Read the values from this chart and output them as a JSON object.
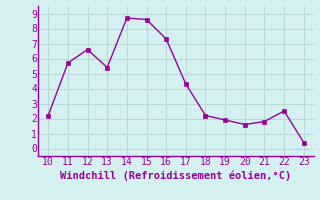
{
  "x": [
    10,
    11,
    12,
    13,
    14,
    15,
    16,
    17,
    18,
    19,
    20,
    21,
    22,
    23
  ],
  "y": [
    2.2,
    5.7,
    6.6,
    5.4,
    8.7,
    8.6,
    7.3,
    4.3,
    2.2,
    1.9,
    1.6,
    1.8,
    2.5,
    0.4
  ],
  "line_color": "#990099",
  "marker_color": "#990099",
  "bg_color": "#d4f0f0",
  "grid_color": "#b8d8d8",
  "xlabel": "Windchill (Refroidissement éolien,°C)",
  "xlabel_color": "#990099",
  "tick_color": "#990099",
  "spine_color": "#990099",
  "xlim": [
    9.5,
    23.5
  ],
  "ylim": [
    -0.5,
    9.5
  ],
  "yticks": [
    0,
    1,
    2,
    3,
    4,
    5,
    6,
    7,
    8,
    9
  ],
  "xticks": [
    10,
    11,
    12,
    13,
    14,
    15,
    16,
    17,
    18,
    19,
    20,
    21,
    22,
    23
  ],
  "tick_fontsize": 7,
  "xlabel_fontsize": 7.5
}
